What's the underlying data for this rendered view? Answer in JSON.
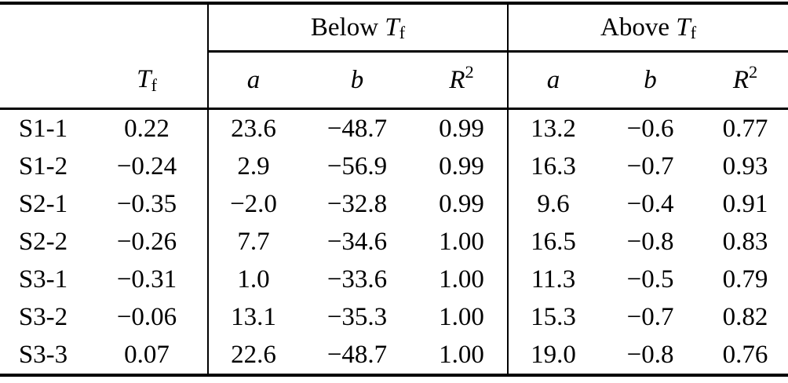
{
  "colors": {
    "text": "#000000",
    "background": "#ffffff",
    "rule": "#000000"
  },
  "header": {
    "below_prefix": "Below ",
    "above_prefix": "Above ",
    "t_symbol": "T",
    "t_sub": "f",
    "a_label": "a",
    "b_label": "b",
    "r_symbol": "R",
    "r_sup": "2"
  },
  "rows": [
    {
      "label": "S1-1",
      "tf": "0.22",
      "below_a": "23.6",
      "below_b": "−48.7",
      "below_r2": "0.99",
      "above_a": "13.2",
      "above_b": "−0.6",
      "above_r2": "0.77"
    },
    {
      "label": "S1-2",
      "tf": "−0.24",
      "below_a": "2.9",
      "below_b": "−56.9",
      "below_r2": "0.99",
      "above_a": "16.3",
      "above_b": "−0.7",
      "above_r2": "0.93"
    },
    {
      "label": "S2-1",
      "tf": "−0.35",
      "below_a": "−2.0",
      "below_b": "−32.8",
      "below_r2": "0.99",
      "above_a": "9.6",
      "above_b": "−0.4",
      "above_r2": "0.91"
    },
    {
      "label": "S2-2",
      "tf": "−0.26",
      "below_a": "7.7",
      "below_b": "−34.6",
      "below_r2": "1.00",
      "above_a": "16.5",
      "above_b": "−0.8",
      "above_r2": "0.83"
    },
    {
      "label": "S3-1",
      "tf": "−0.31",
      "below_a": "1.0",
      "below_b": "−33.6",
      "below_r2": "1.00",
      "above_a": "11.3",
      "above_b": "−0.5",
      "above_r2": "0.79"
    },
    {
      "label": "S3-2",
      "tf": "−0.06",
      "below_a": "13.1",
      "below_b": "−35.3",
      "below_r2": "1.00",
      "above_a": "15.3",
      "above_b": "−0.7",
      "above_r2": "0.82"
    },
    {
      "label": "S3-3",
      "tf": "0.07",
      "below_a": "22.6",
      "below_b": "−48.7",
      "below_r2": "1.00",
      "above_a": "19.0",
      "above_b": "−0.8",
      "above_r2": "0.76"
    }
  ]
}
